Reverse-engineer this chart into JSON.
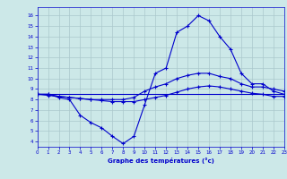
{
  "xlabel": "Graphe des températures (°c)",
  "xlim": [
    0,
    23
  ],
  "ylim": [
    3.5,
    16.8
  ],
  "yticks": [
    4,
    5,
    6,
    7,
    8,
    9,
    10,
    11,
    12,
    13,
    14,
    15,
    16
  ],
  "xticks": [
    0,
    1,
    2,
    3,
    4,
    5,
    6,
    7,
    8,
    9,
    10,
    11,
    12,
    13,
    14,
    15,
    16,
    17,
    18,
    19,
    20,
    21,
    22,
    23
  ],
  "bg_color": "#cce8e8",
  "line_color": "#0000cc",
  "grid_color": "#aac8cc",
  "curve1_x": [
    0,
    1,
    2,
    3,
    4,
    5,
    6,
    7,
    8,
    9,
    10,
    11,
    12,
    13,
    14,
    15,
    16,
    17,
    18,
    19,
    20,
    21,
    22,
    23
  ],
  "curve1_y": [
    8.5,
    8.5,
    8.2,
    8.0,
    6.5,
    5.8,
    5.3,
    4.5,
    3.8,
    4.5,
    7.5,
    10.5,
    11.0,
    14.4,
    15.0,
    16.0,
    15.5,
    14.0,
    12.8,
    10.5,
    9.5,
    9.5,
    8.8,
    8.5
  ],
  "curve2_x": [
    0,
    1,
    2,
    3,
    4,
    5,
    6,
    7,
    8,
    9,
    10,
    11,
    12,
    13,
    14,
    15,
    16,
    17,
    18,
    19,
    20,
    21,
    22,
    23
  ],
  "curve2_y": [
    8.5,
    8.5,
    8.3,
    8.2,
    8.1,
    8.0,
    8.0,
    8.0,
    8.0,
    8.2,
    8.8,
    9.2,
    9.5,
    10.0,
    10.3,
    10.5,
    10.5,
    10.2,
    10.0,
    9.5,
    9.2,
    9.2,
    9.0,
    8.8
  ],
  "curve3_x": [
    0,
    1,
    2,
    3,
    4,
    5,
    6,
    7,
    8,
    9,
    10,
    11,
    12,
    13,
    14,
    15,
    16,
    17,
    18,
    19,
    20,
    21,
    22,
    23
  ],
  "curve3_y": [
    8.5,
    8.4,
    8.3,
    8.2,
    8.1,
    8.0,
    7.9,
    7.8,
    7.8,
    7.8,
    8.0,
    8.2,
    8.4,
    8.7,
    9.0,
    9.2,
    9.3,
    9.2,
    9.0,
    8.8,
    8.6,
    8.5,
    8.3,
    8.3
  ],
  "curve4_x": [
    0,
    23
  ],
  "curve4_y": [
    8.5,
    8.5
  ]
}
